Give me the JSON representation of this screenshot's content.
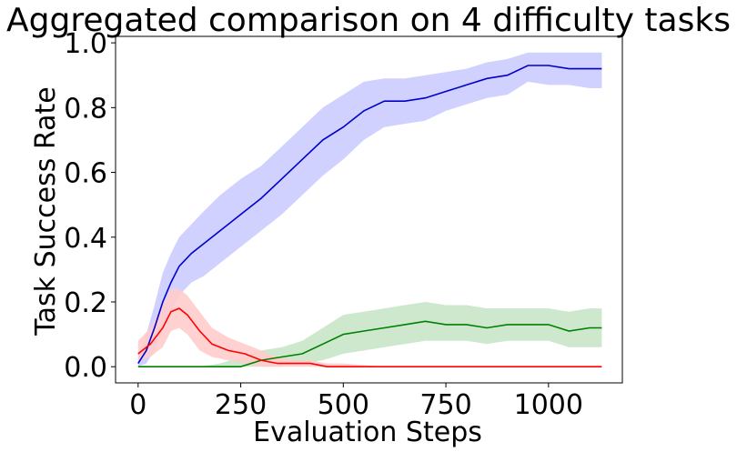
{
  "chart_data": {
    "type": "line",
    "title": "Aggregated comparison on 4 difficulty tasks",
    "xlabel": "Evaluation Steps",
    "ylabel": "Task Success Rate",
    "xlim": [
      -55,
      1180
    ],
    "ylim": [
      -0.05,
      1.02
    ],
    "x_ticks": [
      0,
      250,
      500,
      750,
      1000
    ],
    "x_tick_labels": [
      "0",
      "250",
      "500",
      "750",
      "1000"
    ],
    "y_ticks": [
      0.0,
      0.2,
      0.4,
      0.6,
      0.8,
      1.0
    ],
    "y_tick_labels": [
      "0.0",
      "0.2",
      "0.4",
      "0.6",
      "0.8",
      "1.0"
    ],
    "grid": false,
    "legend": "none",
    "series": [
      {
        "color": "#0000cc",
        "band_color": "#ccccff",
        "x": [
          0,
          20,
          40,
          60,
          80,
          100,
          130,
          160,
          200,
          250,
          300,
          350,
          400,
          450,
          500,
          550,
          600,
          650,
          700,
          750,
          800,
          850,
          900,
          950,
          1000,
          1050,
          1100,
          1130
        ],
        "y": [
          0.01,
          0.05,
          0.12,
          0.2,
          0.26,
          0.31,
          0.35,
          0.38,
          0.42,
          0.47,
          0.52,
          0.58,
          0.64,
          0.7,
          0.74,
          0.79,
          0.82,
          0.82,
          0.83,
          0.85,
          0.87,
          0.89,
          0.9,
          0.93,
          0.93,
          0.92,
          0.92,
          0.92
        ],
        "lower": [
          0.0,
          0.01,
          0.05,
          0.11,
          0.17,
          0.22,
          0.26,
          0.28,
          0.32,
          0.37,
          0.42,
          0.47,
          0.53,
          0.59,
          0.64,
          0.7,
          0.74,
          0.75,
          0.76,
          0.79,
          0.81,
          0.83,
          0.84,
          0.88,
          0.87,
          0.87,
          0.86,
          0.86
        ],
        "upper": [
          0.03,
          0.1,
          0.19,
          0.29,
          0.35,
          0.4,
          0.44,
          0.48,
          0.53,
          0.58,
          0.62,
          0.68,
          0.74,
          0.8,
          0.84,
          0.88,
          0.89,
          0.89,
          0.9,
          0.91,
          0.92,
          0.94,
          0.95,
          0.97,
          0.97,
          0.97,
          0.97,
          0.97
        ]
      },
      {
        "color": "#008000",
        "band_color": "#c8e6c8",
        "x": [
          0,
          50,
          100,
          150,
          200,
          250,
          300,
          350,
          400,
          450,
          500,
          550,
          600,
          650,
          700,
          750,
          800,
          850,
          900,
          950,
          1000,
          1050,
          1100,
          1130
        ],
        "y": [
          0.0,
          0.0,
          0.0,
          0.0,
          0.0,
          0.0,
          0.02,
          0.03,
          0.04,
          0.07,
          0.1,
          0.11,
          0.12,
          0.13,
          0.14,
          0.13,
          0.13,
          0.12,
          0.13,
          0.13,
          0.13,
          0.11,
          0.12,
          0.12
        ],
        "lower": [
          0.0,
          0.0,
          0.0,
          0.0,
          0.0,
          0.0,
          0.0,
          0.0,
          0.01,
          0.02,
          0.04,
          0.05,
          0.06,
          0.07,
          0.08,
          0.08,
          0.08,
          0.07,
          0.08,
          0.08,
          0.08,
          0.06,
          0.06,
          0.06
        ],
        "upper": [
          0.0,
          0.0,
          0.0,
          0.0,
          0.01,
          0.03,
          0.05,
          0.06,
          0.08,
          0.12,
          0.16,
          0.17,
          0.18,
          0.19,
          0.2,
          0.19,
          0.19,
          0.18,
          0.18,
          0.18,
          0.18,
          0.17,
          0.18,
          0.18
        ]
      },
      {
        "color": "#ff0000",
        "band_color": "#ffcccc",
        "x": [
          0,
          30,
          60,
          80,
          100,
          120,
          150,
          180,
          220,
          260,
          300,
          340,
          380,
          420,
          460,
          500,
          600,
          800,
          1000,
          1130
        ],
        "y": [
          0.04,
          0.07,
          0.12,
          0.17,
          0.18,
          0.16,
          0.11,
          0.07,
          0.05,
          0.04,
          0.02,
          0.01,
          0.01,
          0.01,
          0.0,
          0.0,
          0.0,
          0.0,
          0.0,
          0.0
        ],
        "lower": [
          0.02,
          0.03,
          0.06,
          0.11,
          0.12,
          0.1,
          0.05,
          0.03,
          0.02,
          0.01,
          0.0,
          0.0,
          0.0,
          0.0,
          0.0,
          0.0,
          0.0,
          0.0,
          0.0,
          0.0
        ],
        "upper": [
          0.08,
          0.12,
          0.19,
          0.24,
          0.24,
          0.22,
          0.17,
          0.12,
          0.09,
          0.07,
          0.05,
          0.03,
          0.02,
          0.02,
          0.01,
          0.01,
          0.0,
          0.0,
          0.0,
          0.0
        ]
      }
    ]
  }
}
